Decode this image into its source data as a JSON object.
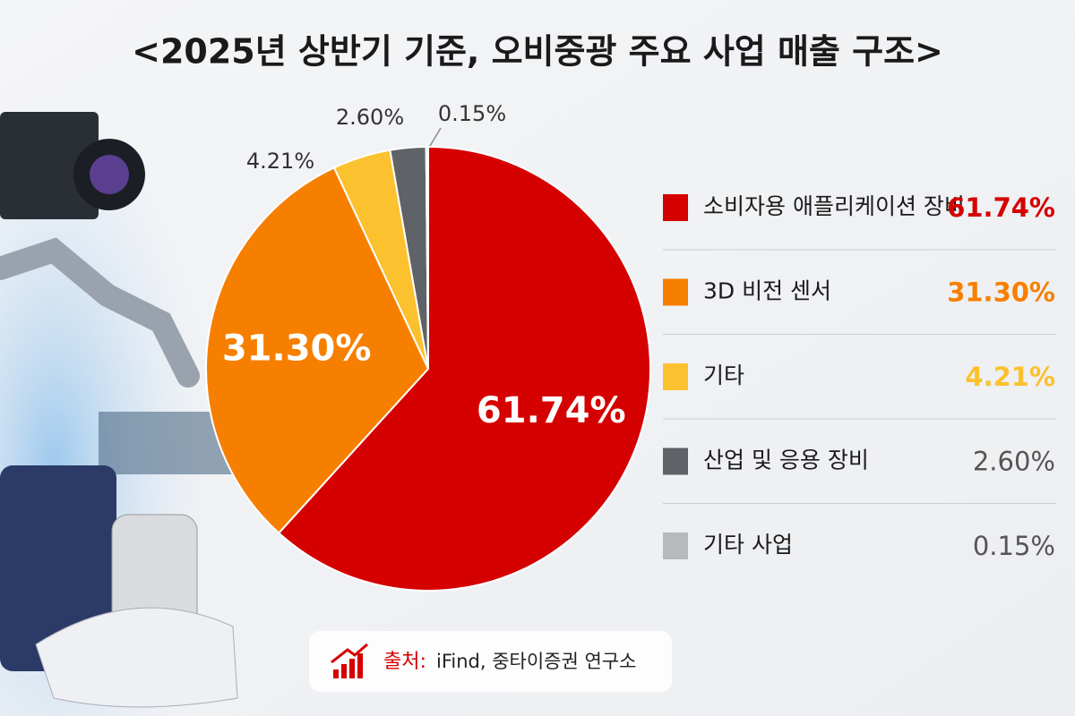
{
  "chart_data": {
    "type": "pie",
    "title": "<2025년 상반기 기준, 오비중광 주요 사업 매출 구조>",
    "categories": [
      "소비자용 애플리케이션 장비",
      "3D 비전 센서",
      "기타",
      "산업 및 응용 장비",
      "기타 사업"
    ],
    "values": [
      61.74,
      31.3,
      4.21,
      2.6,
      0.15
    ],
    "value_labels": [
      "61.74%",
      "31.30%",
      "4.21%",
      "2.60%",
      "0.15%"
    ],
    "colors": [
      "#d50000",
      "#f77f00",
      "#fcc12e",
      "#5f6266",
      "#b7b9bc"
    ],
    "source_label": "출처:",
    "source": "iFind, 중타이증권 연구소"
  }
}
